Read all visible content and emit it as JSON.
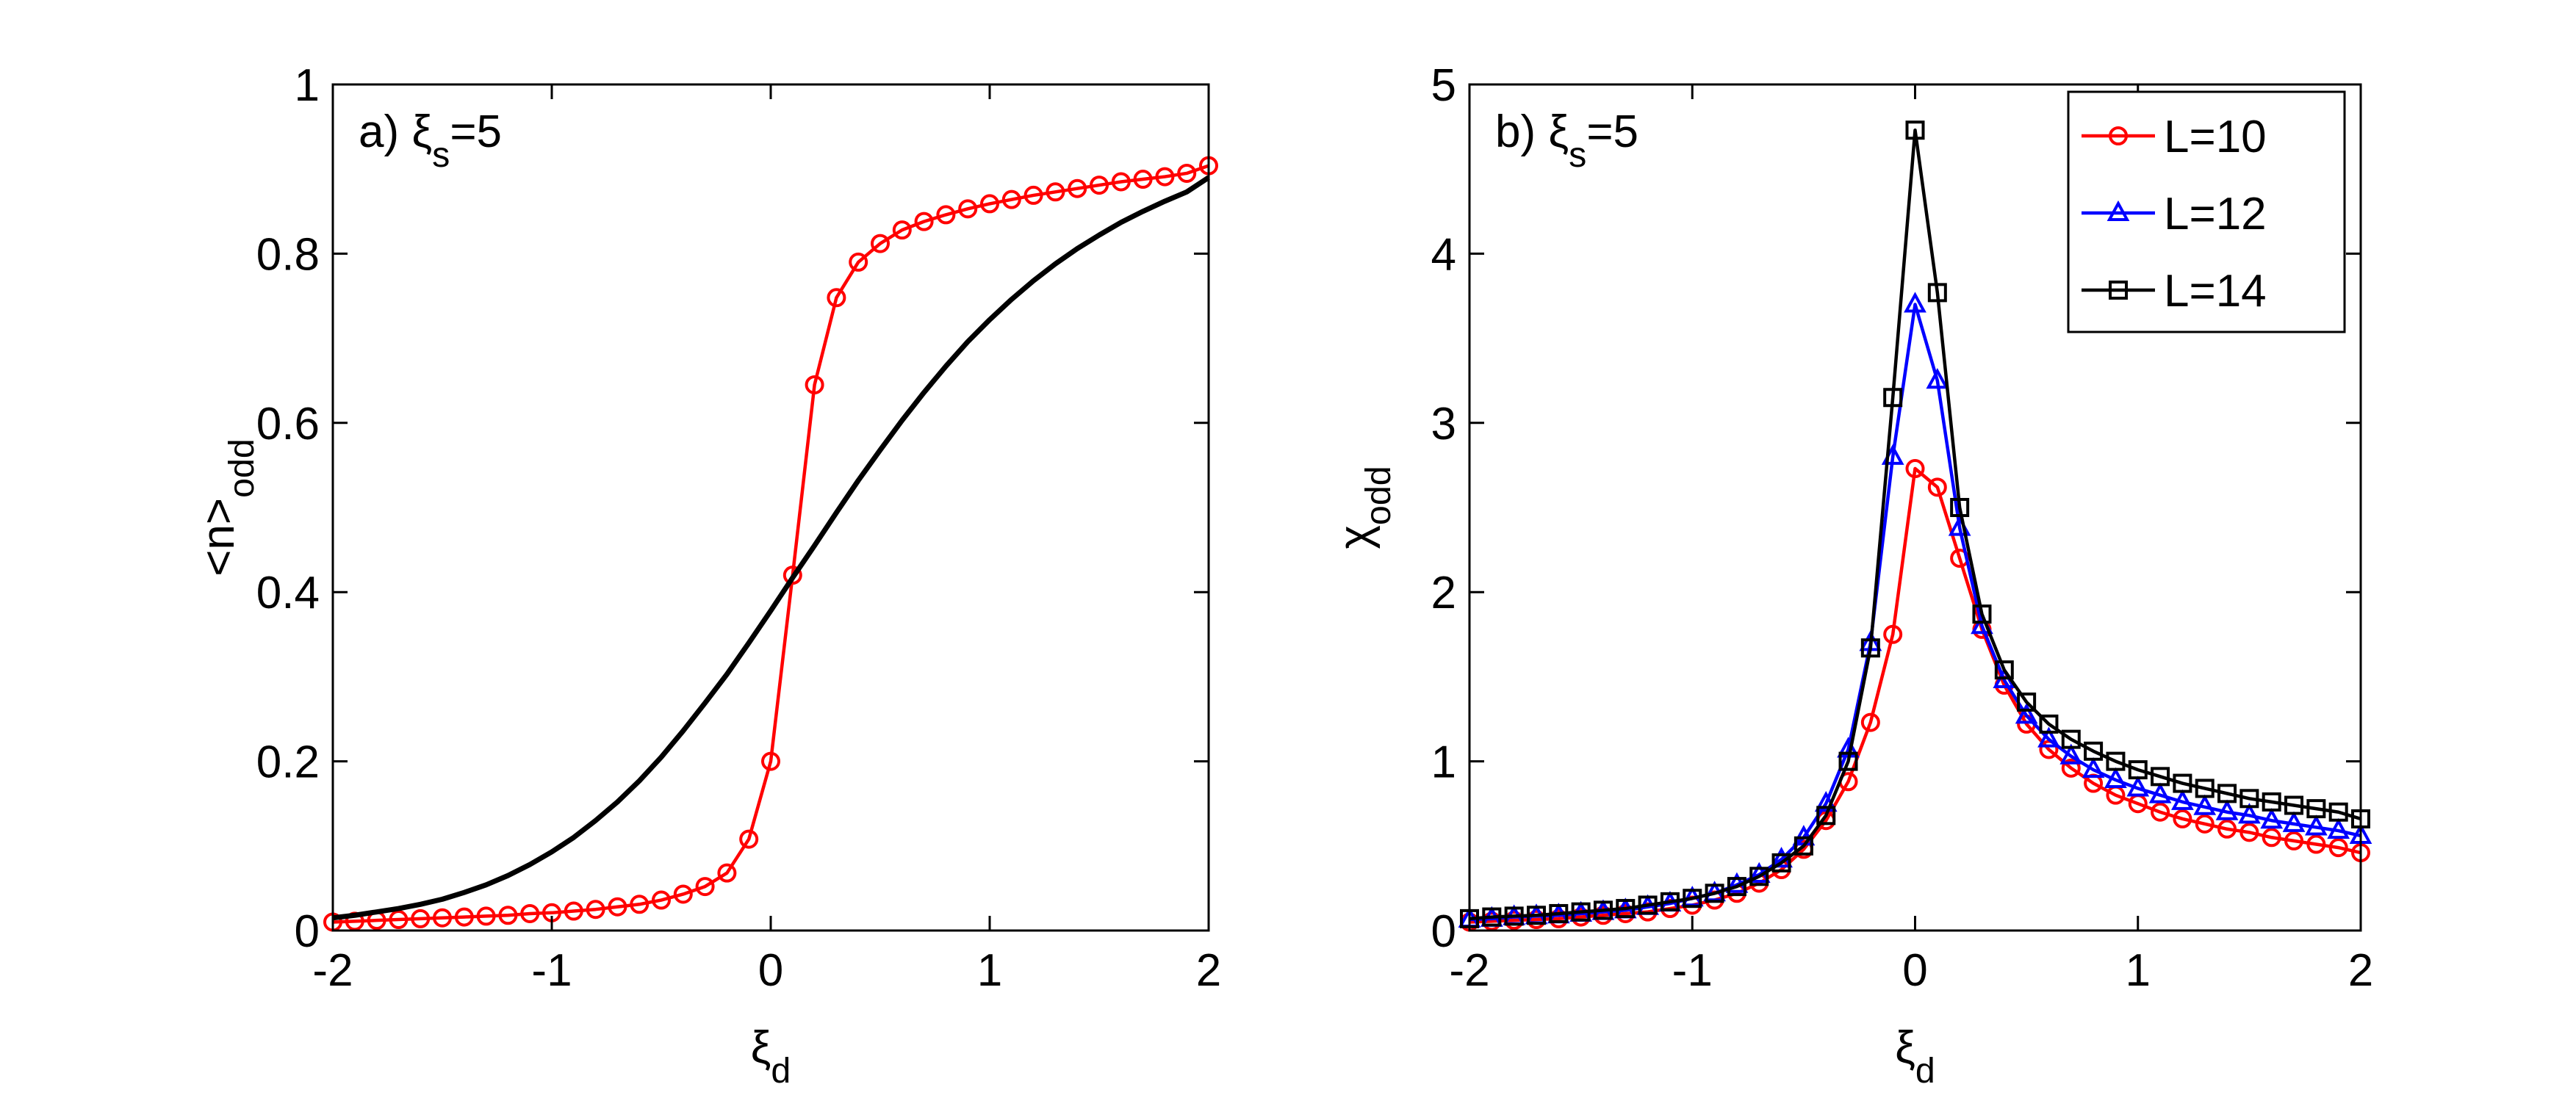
{
  "chart_data": [
    {
      "type": "line",
      "annotation": {
        "text": "a) ξ",
        "sub": "s",
        "after": "=5"
      },
      "xlabel": {
        "text": "ξ",
        "sub": "d"
      },
      "ylabel": {
        "text": "<n>",
        "sub": "odd"
      },
      "x": [
        -2,
        -1.9,
        -1.8,
        -1.7,
        -1.6,
        -1.5,
        -1.4,
        -1.3,
        -1.2,
        -1.1,
        -1,
        -0.9,
        -0.8,
        -0.7,
        -0.6,
        -0.5,
        -0.4,
        -0.3,
        -0.2,
        -0.1,
        0,
        0.1,
        0.2,
        0.3,
        0.4,
        0.5,
        0.6,
        0.7,
        0.8,
        0.9,
        1,
        1.1,
        1.2,
        1.3,
        1.4,
        1.5,
        1.6,
        1.7,
        1.8,
        1.9,
        2
      ],
      "series": [
        {
          "color": "#ff0000",
          "marker": "circle",
          "values": [
            0.01,
            0.011,
            0.012,
            0.013,
            0.014,
            0.015,
            0.016,
            0.017,
            0.018,
            0.02,
            0.021,
            0.023,
            0.025,
            0.028,
            0.031,
            0.036,
            0.043,
            0.052,
            0.068,
            0.108,
            0.2,
            0.42,
            0.645,
            0.748,
            0.79,
            0.812,
            0.828,
            0.838,
            0.846,
            0.853,
            0.859,
            0.864,
            0.869,
            0.873,
            0.877,
            0.881,
            0.885,
            0.888,
            0.891,
            0.895,
            0.904
          ]
        },
        {
          "color": "#000000",
          "marker": "none",
          "values": [
            0.015,
            0.018,
            0.022,
            0.026,
            0.031,
            0.037,
            0.045,
            0.054,
            0.065,
            0.078,
            0.093,
            0.11,
            0.13,
            0.152,
            0.177,
            0.205,
            0.236,
            0.269,
            0.303,
            0.34,
            0.378,
            0.417,
            0.455,
            0.494,
            0.532,
            0.568,
            0.603,
            0.636,
            0.667,
            0.696,
            0.722,
            0.746,
            0.768,
            0.788,
            0.806,
            0.822,
            0.837,
            0.85,
            0.862,
            0.873,
            0.89
          ]
        }
      ],
      "xlim": [
        -2,
        2
      ],
      "xticks": [
        -2,
        -1,
        0,
        1,
        2
      ],
      "ylim": [
        0,
        1
      ],
      "yticks": [
        0,
        0.2,
        0.4,
        0.6,
        0.8,
        1
      ]
    },
    {
      "type": "line",
      "annotation": {
        "text": "b) ξ",
        "sub": "s",
        "after": "=5"
      },
      "xlabel": {
        "text": "ξ",
        "sub": "d"
      },
      "ylabel": {
        "text": "χ",
        "sub": "odd"
      },
      "legend": "upper right",
      "x": [
        -2,
        -1.9,
        -1.8,
        -1.7,
        -1.6,
        -1.5,
        -1.4,
        -1.3,
        -1.2,
        -1.1,
        -1,
        -0.9,
        -0.8,
        -0.7,
        -0.6,
        -0.5,
        -0.4,
        -0.3,
        -0.2,
        -0.1,
        0,
        0.1,
        0.2,
        0.3,
        0.4,
        0.5,
        0.6,
        0.7,
        0.8,
        0.9,
        1,
        1.1,
        1.2,
        1.3,
        1.4,
        1.5,
        1.6,
        1.7,
        1.8,
        1.9,
        2
      ],
      "series": [
        {
          "name": "L=10",
          "color": "#ff0000",
          "marker": "circle",
          "values": [
            0.05,
            0.055,
            0.06,
            0.065,
            0.07,
            0.08,
            0.09,
            0.1,
            0.11,
            0.13,
            0.15,
            0.18,
            0.22,
            0.28,
            0.36,
            0.48,
            0.65,
            0.88,
            1.23,
            1.75,
            2.73,
            2.62,
            2.2,
            1.78,
            1.45,
            1.22,
            1.07,
            0.96,
            0.87,
            0.8,
            0.75,
            0.7,
            0.66,
            0.63,
            0.6,
            0.58,
            0.55,
            0.53,
            0.51,
            0.49,
            0.46
          ]
        },
        {
          "name": "L=12",
          "color": "#0000ff",
          "marker": "triangle",
          "values": [
            0.065,
            0.07,
            0.08,
            0.085,
            0.09,
            0.1,
            0.11,
            0.12,
            0.14,
            0.16,
            0.19,
            0.22,
            0.27,
            0.33,
            0.42,
            0.55,
            0.75,
            1.07,
            1.7,
            2.8,
            3.7,
            3.25,
            2.38,
            1.8,
            1.48,
            1.27,
            1.13,
            1.03,
            0.95,
            0.89,
            0.84,
            0.8,
            0.76,
            0.73,
            0.7,
            0.68,
            0.65,
            0.63,
            0.61,
            0.59,
            0.56
          ]
        },
        {
          "name": "L=14",
          "color": "#000000",
          "marker": "square",
          "values": [
            0.07,
            0.08,
            0.085,
            0.09,
            0.1,
            0.11,
            0.12,
            0.13,
            0.15,
            0.17,
            0.19,
            0.22,
            0.26,
            0.32,
            0.4,
            0.5,
            0.68,
            1.0,
            1.67,
            3.15,
            4.73,
            3.77,
            2.5,
            1.87,
            1.54,
            1.35,
            1.22,
            1.13,
            1.06,
            1.0,
            0.95,
            0.91,
            0.87,
            0.84,
            0.81,
            0.78,
            0.76,
            0.74,
            0.72,
            0.7,
            0.66
          ]
        }
      ],
      "xlim": [
        -2,
        2
      ],
      "xticks": [
        -2,
        -1,
        0,
        1,
        2
      ],
      "ylim": [
        0,
        5
      ],
      "yticks": [
        0,
        1,
        2,
        3,
        4,
        5
      ]
    }
  ]
}
